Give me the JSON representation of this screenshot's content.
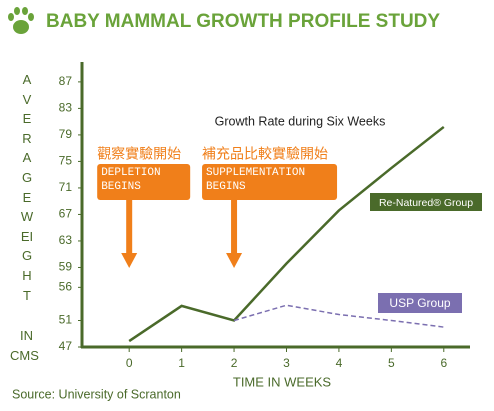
{
  "chart_data": {
    "type": "line",
    "title": "BABY MAMMAL GROWTH PROFILE STUDY",
    "subtitle": "Growth Rate during Six Weeks",
    "x_label": "TIME IN WEEKS",
    "y_label": "AVERAGEWEIGHT",
    "y_unit": [
      "IN",
      "CMS"
    ],
    "source": "Source: University of Scranton",
    "x": [
      0,
      1,
      2,
      3,
      4,
      5,
      6
    ],
    "xlim": [
      -0.9,
      6.5
    ],
    "xticks": [
      0,
      1,
      2,
      3,
      4,
      5,
      6
    ],
    "ylim": [
      47,
      90
    ],
    "yticks": [
      47,
      51,
      56,
      59,
      63,
      67,
      71,
      75,
      79,
      83,
      87
    ],
    "grid": false,
    "series": [
      {
        "name": "Re-Natured® Group",
        "color": "#4a6a2a",
        "dashed": false,
        "values": [
          47.9,
          53.2,
          51,
          59.6,
          67.6,
          74,
          80.2
        ]
      },
      {
        "name": "USP Group",
        "color": "#7b6fb0",
        "dashed": true,
        "values": [
          null,
          null,
          51,
          53.3,
          51.9,
          51,
          50
        ]
      }
    ],
    "annotations": [
      {
        "x": 0,
        "title": "觀察實驗開始",
        "text": "DEPLETION BEGINS"
      },
      {
        "x": 2,
        "title": "補充品比較實驗開始",
        "text": "SUPPLEMENTATION BEGINS"
      }
    ]
  }
}
